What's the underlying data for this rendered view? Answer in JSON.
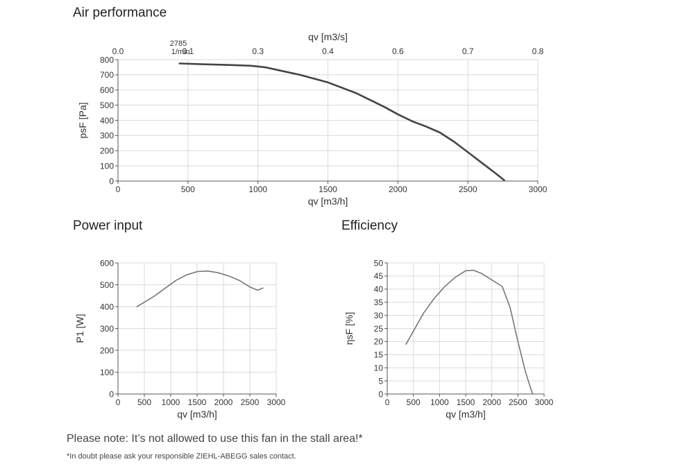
{
  "sections": {
    "air_title": "Air performance",
    "power_title": "Power input",
    "eff_title": "Efficiency"
  },
  "notes": {
    "main": "Please note: It’s not allowed to use this fan in the stall area!*",
    "footnote": "*In doubt please ask your responsible ZIEHL-ABEGG sales contact."
  },
  "chart_data": [
    {
      "type": "line",
      "title": "Air performance",
      "xlabel": "qv [m3/h]",
      "ylabel": "psF [Pa]",
      "x2label": "qv [m3/s]",
      "xlim": [
        0,
        3000
      ],
      "ylim": [
        0,
        800
      ],
      "xticks": [
        "0",
        "500",
        "1000",
        "1500",
        "2000",
        "2500",
        "3000"
      ],
      "yticks": [
        "0",
        "100",
        "200",
        "300",
        "400",
        "500",
        "600",
        "700",
        "800"
      ],
      "x2ticks": [
        "0.0",
        "0.1",
        "0.3",
        "0.4",
        "0.6",
        "0.7",
        "0.8"
      ],
      "grid": true,
      "annotation": [
        "2785",
        "1/min"
      ],
      "series": [
        {
          "x": [
            440,
            600,
            800,
            950,
            1050,
            1150,
            1300,
            1500,
            1700,
            1900,
            2000,
            2100,
            2200,
            2300,
            2400,
            2500,
            2600,
            2700,
            2760
          ],
          "y": [
            775,
            770,
            765,
            760,
            750,
            730,
            700,
            650,
            580,
            490,
            440,
            395,
            360,
            320,
            260,
            190,
            120,
            50,
            5
          ]
        }
      ]
    },
    {
      "type": "line",
      "title": "Power input",
      "xlabel": "qv [m3/h]",
      "ylabel": "P1 [W]",
      "xlim": [
        0,
        3000
      ],
      "ylim": [
        0,
        600
      ],
      "xticks": [
        "0",
        "500",
        "1000",
        "1500",
        "2000",
        "2500",
        "3000"
      ],
      "yticks": [
        "0",
        "100",
        "200",
        "300",
        "400",
        "500",
        "600"
      ],
      "grid": true,
      "series": [
        {
          "x": [
            360,
            500,
            700,
            900,
            1100,
            1300,
            1500,
            1700,
            1900,
            2100,
            2300,
            2500,
            2650,
            2750
          ],
          "y": [
            400,
            420,
            450,
            485,
            520,
            545,
            560,
            563,
            555,
            540,
            520,
            490,
            475,
            485
          ]
        }
      ]
    },
    {
      "type": "line",
      "title": "Efficiency",
      "xlabel": "qv [m3/h]",
      "ylabel": "ηsF [%]",
      "xlim": [
        0,
        3000
      ],
      "ylim": [
        0,
        50
      ],
      "xticks": [
        "0",
        "500",
        "1000",
        "1500",
        "2000",
        "2500",
        "3000"
      ],
      "yticks": [
        "0",
        "5",
        "10",
        "15",
        "20",
        "25",
        "30",
        "35",
        "40",
        "45",
        "50"
      ],
      "grid": true,
      "series": [
        {
          "x": [
            360,
            500,
            700,
            900,
            1100,
            1300,
            1500,
            1650,
            1800,
            2000,
            2200,
            2350,
            2500,
            2650,
            2780
          ],
          "y": [
            19,
            24,
            31,
            36.5,
            41,
            44.5,
            47,
            47.2,
            46,
            43.5,
            41,
            33,
            20,
            8,
            0
          ]
        }
      ]
    }
  ]
}
